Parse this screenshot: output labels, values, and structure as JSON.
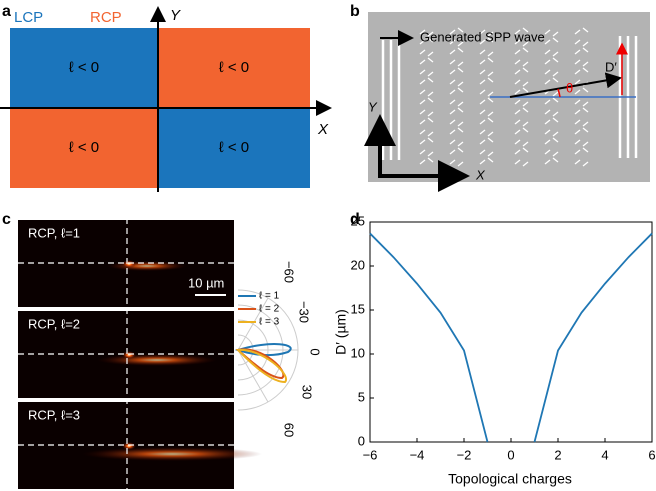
{
  "panel_a": {
    "label": "a",
    "legend": [
      "LCP",
      "RCP"
    ],
    "y_axis": "Y",
    "x_axis": "X",
    "quadrants": [
      "ℓ < 0",
      "ℓ < 0",
      "ℓ < 0",
      "ℓ < 0"
    ]
  },
  "panel_b": {
    "label": "b",
    "arrow_text": "Generated SPP wave",
    "offset": "D′",
    "angle": "θ",
    "y_axis": "Y",
    "x_axis": "X"
  },
  "panel_c": {
    "label": "c",
    "images": [
      "RCP, ℓ=1",
      "RCP, ℓ=2",
      "RCP, ℓ=3"
    ],
    "scale_bar": "10 µm",
    "polar_ticks": [
      "−60",
      "−30",
      "0",
      "30",
      "60"
    ],
    "legend": [
      "ℓ = 1",
      "ℓ = 2",
      "ℓ = 3"
    ]
  },
  "chart_data": {
    "type": "line",
    "label": "d",
    "x_label": "Topological charges",
    "y_label": "D′ (µm)",
    "x": [
      -6,
      -5,
      -4,
      -3,
      -2,
      -1,
      0,
      1,
      2,
      3,
      4,
      5,
      6
    ],
    "series": [
      {
        "color": "#1f77b4",
        "values": [
          23.7,
          21,
          18,
          14.7,
          10.4,
          0,
          null,
          0,
          10.4,
          14.7,
          18,
          21,
          23.7
        ]
      }
    ],
    "xlim": [
      -6,
      6
    ],
    "ylim": [
      0,
      25
    ],
    "xticks": [
      {
        "value": -6,
        "label": "−6"
      },
      {
        "value": -4,
        "label": "−4"
      },
      {
        "value": -2,
        "label": "−2"
      },
      0,
      2,
      4,
      6
    ],
    "yticks": [
      0,
      5,
      10,
      15,
      20,
      25
    ]
  }
}
